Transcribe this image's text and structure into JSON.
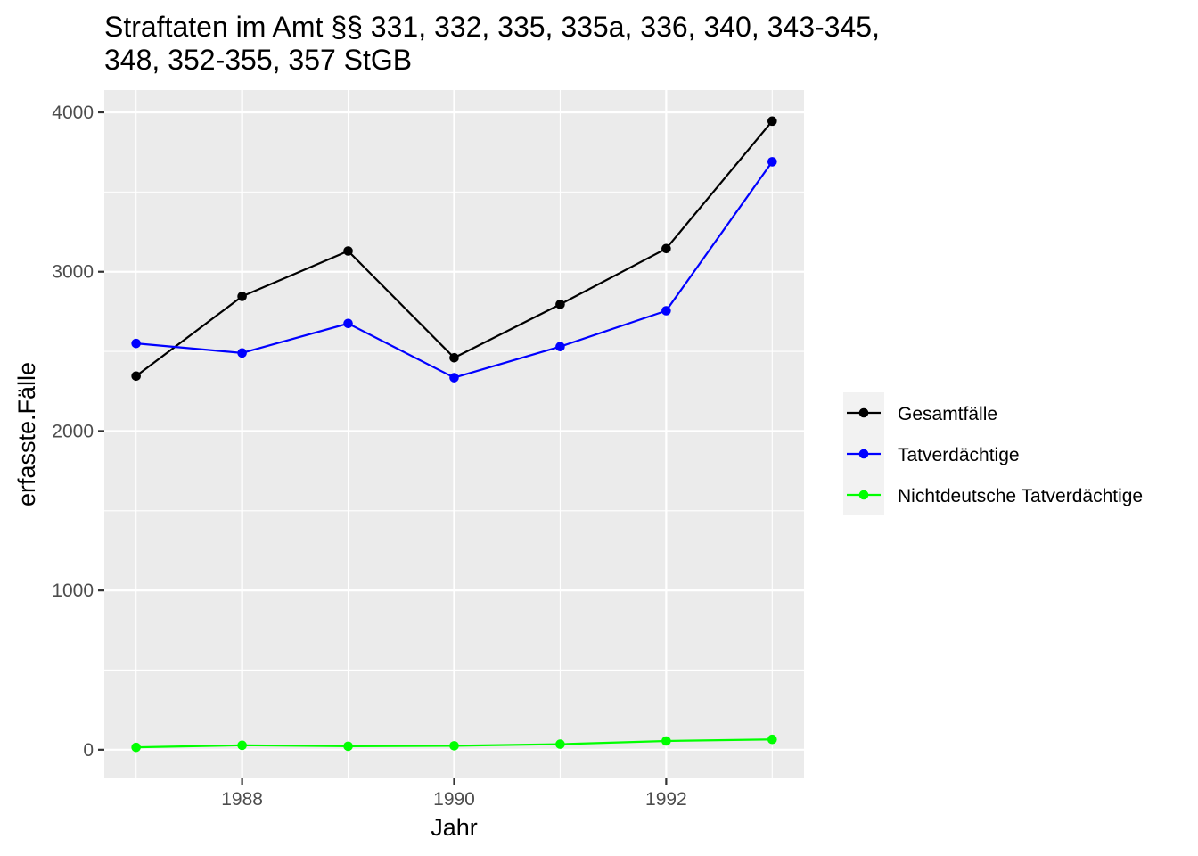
{
  "chart_data": {
    "type": "line",
    "title_lines": [
      "Straftaten im Amt §§ 331, 332, 335, 335a, 336, 340, 343-345,",
      "348, 352-355, 357 StGB"
    ],
    "xlabel": "Jahr",
    "ylabel": "erfasste.Fälle",
    "x": [
      1987,
      1988,
      1989,
      1990,
      1991,
      1992,
      1993
    ],
    "x_ticks": [
      1988,
      1990,
      1992
    ],
    "y_ticks": [
      0,
      1000,
      2000,
      3000,
      4000
    ],
    "xlim": [
      1986.7,
      1993.3
    ],
    "ylim": [
      -180,
      4140
    ],
    "grid": true,
    "legend_position": "right",
    "series": [
      {
        "name": "Gesamtfälle",
        "color": "#000000",
        "values": [
          2345,
          2845,
          3130,
          2460,
          2795,
          3145,
          3945
        ]
      },
      {
        "name": "Tatverdächtige",
        "color": "#0000ff",
        "values": [
          2550,
          2490,
          2675,
          2335,
          2530,
          2755,
          3690
        ]
      },
      {
        "name": "Nichtdeutsche Tatverdächtige",
        "color": "#00ff00",
        "values": [
          15,
          28,
          22,
          25,
          35,
          55,
          65
        ]
      }
    ]
  }
}
